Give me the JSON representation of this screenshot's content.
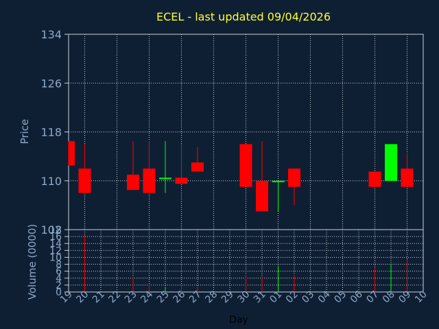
{
  "chart_data": {
    "type": "candlestick",
    "title": "ECEL - last updated 09/04/2026",
    "ylabel": "Price",
    "volume_label": "Volume (0000)",
    "xlabel": "Day",
    "price_ylim": [
      102,
      134
    ],
    "price_ticks": [
      "134",
      "126",
      "118",
      "110",
      "102"
    ],
    "volume_ylim": [
      0,
      18
    ],
    "volume_ticks": [
      "18",
      "16",
      "14",
      "12",
      "10",
      "8",
      "6",
      "4",
      "2",
      "0"
    ],
    "grid": true,
    "days": [
      "19",
      "20",
      "21",
      "22",
      "23",
      "24",
      "25",
      "26",
      "27",
      "28",
      "29",
      "30",
      "31",
      "01",
      "02",
      "03",
      "04",
      "05",
      "06",
      "07",
      "08",
      "09",
      "10"
    ],
    "candles": [
      {
        "day": "19",
        "open": 116.5,
        "close": 112.5,
        "high": 116.5,
        "low": 112.5,
        "volume": 0
      },
      {
        "day": "20",
        "open": 112.0,
        "close": 108.0,
        "high": 116.0,
        "low": 108.0,
        "volume": 16.5
      },
      {
        "day": "23",
        "open": 111.0,
        "close": 108.5,
        "high": 116.5,
        "low": 108.5,
        "volume": 4.5
      },
      {
        "day": "24",
        "open": 112.0,
        "close": 108.0,
        "high": 116.5,
        "low": 108.0,
        "volume": 2.0
      },
      {
        "day": "25",
        "open": 110.5,
        "close": 110.5,
        "high": 116.5,
        "low": 108.0,
        "volume": 1.5
      },
      {
        "day": "26",
        "open": 110.5,
        "close": 109.5,
        "high": 116.0,
        "low": 109.5,
        "volume": 2.0
      },
      {
        "day": "27",
        "open": 113.0,
        "close": 111.5,
        "high": 115.5,
        "low": 111.5,
        "volume": 1.5
      },
      {
        "day": "30",
        "open": 116.0,
        "close": 109.0,
        "high": 116.0,
        "low": 109.0,
        "volume": 5.0
      },
      {
        "day": "31",
        "open": 110.0,
        "close": 105.0,
        "high": 116.5,
        "low": 105.0,
        "volume": 4.5
      },
      {
        "day": "01",
        "open": 110.0,
        "close": 110.0,
        "high": 110.0,
        "low": 105.0,
        "volume": 7.5
      },
      {
        "day": "02",
        "open": 112.0,
        "close": 109.0,
        "high": 112.0,
        "low": 106.0,
        "volume": 5.0
      },
      {
        "day": "07",
        "open": 111.5,
        "close": 109.0,
        "high": 111.5,
        "low": 109.0,
        "volume": 7.0
      },
      {
        "day": "08",
        "open": 110.0,
        "close": 116.0,
        "high": 116.0,
        "low": 110.0,
        "volume": 8.0
      },
      {
        "day": "09",
        "open": 112.0,
        "close": 109.0,
        "high": 114.5,
        "low": 109.0,
        "volume": 9.5
      }
    ],
    "colors": {
      "up": "#00ff00",
      "down": "#ff0000",
      "title": "#ffff33",
      "axis_text": "#8ea9c8",
      "grid": "#c8d0da",
      "background": "#0f1f33"
    }
  }
}
